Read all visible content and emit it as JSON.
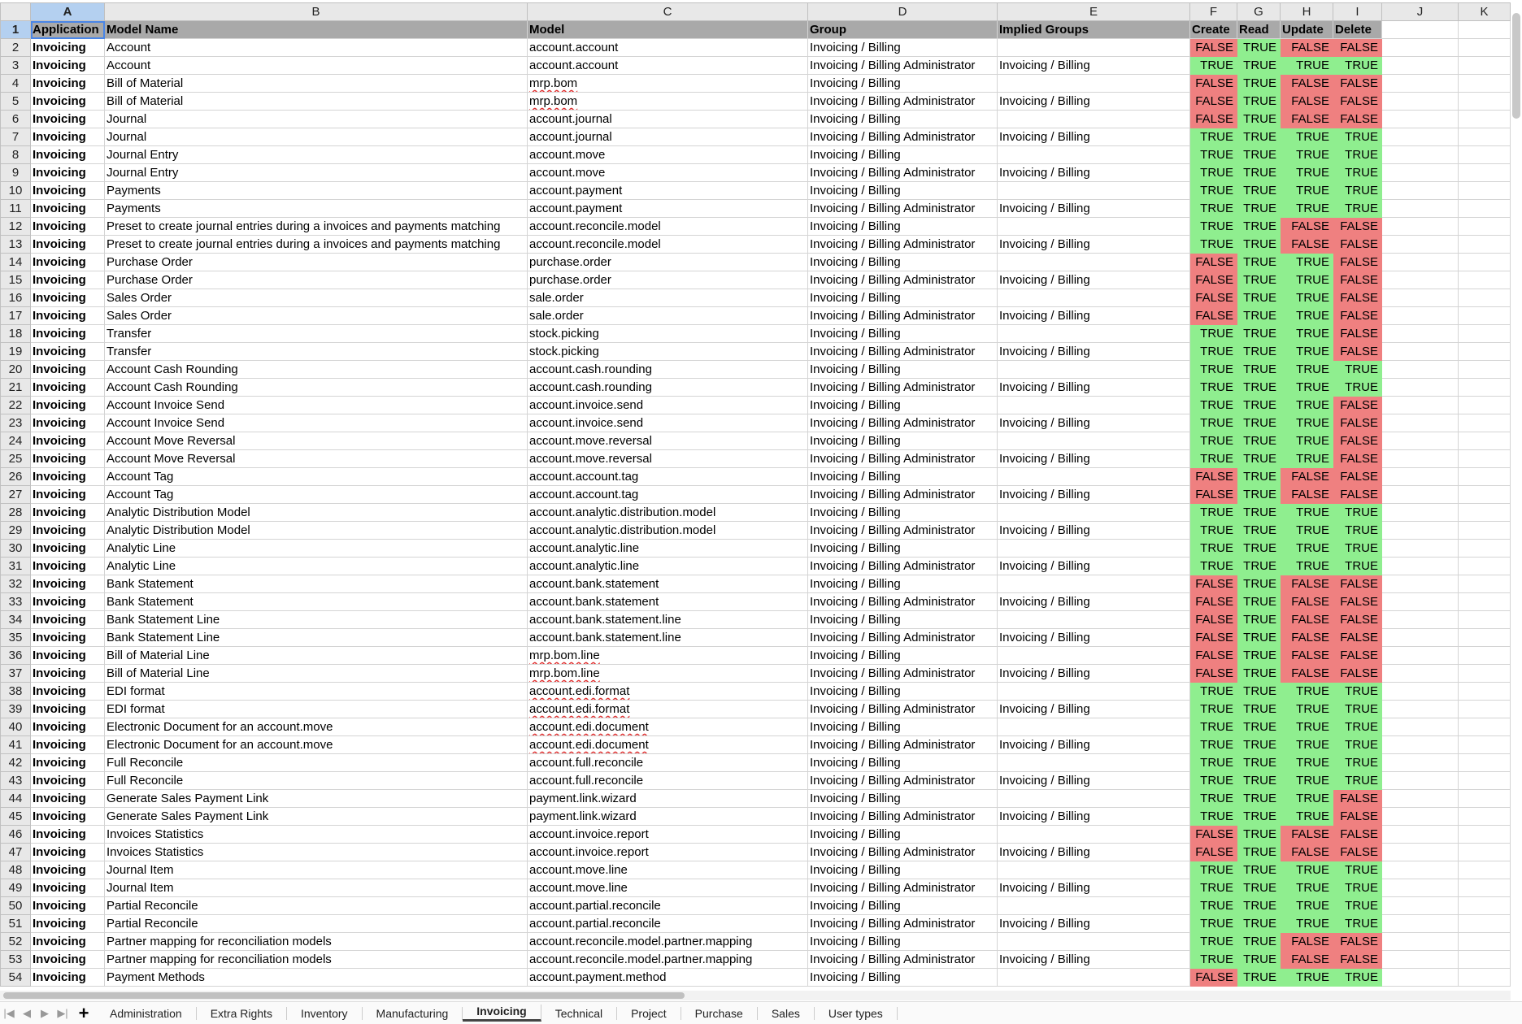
{
  "column_letters": [
    "A",
    "B",
    "C",
    "D",
    "E",
    "F",
    "G",
    "H",
    "I",
    "J",
    "K"
  ],
  "selected_cell": "A1",
  "header_row": [
    "Application",
    "Model Name",
    "Model",
    "Group",
    "Implied Groups",
    "Create",
    "Read",
    "Update",
    "Delete",
    "",
    ""
  ],
  "rows": [
    [
      "Invoicing",
      "Account",
      "account.account",
      "Invoicing / Billing",
      "",
      "FALSE",
      "TRUE",
      "FALSE",
      "FALSE"
    ],
    [
      "Invoicing",
      "Account",
      "account.account",
      "Invoicing / Billing Administrator",
      "Invoicing / Billing",
      "TRUE",
      "TRUE",
      "TRUE",
      "TRUE"
    ],
    [
      "Invoicing",
      "Bill of Material",
      "mrp.bom",
      "Invoicing / Billing",
      "",
      "FALSE",
      "TRUE",
      "FALSE",
      "FALSE"
    ],
    [
      "Invoicing",
      "Bill of Material",
      "mrp.bom",
      "Invoicing / Billing Administrator",
      "Invoicing / Billing",
      "FALSE",
      "TRUE",
      "FALSE",
      "FALSE"
    ],
    [
      "Invoicing",
      "Journal",
      "account.journal",
      "Invoicing / Billing",
      "",
      "FALSE",
      "TRUE",
      "FALSE",
      "FALSE"
    ],
    [
      "Invoicing",
      "Journal",
      "account.journal",
      "Invoicing / Billing Administrator",
      "Invoicing / Billing",
      "TRUE",
      "TRUE",
      "TRUE",
      "TRUE"
    ],
    [
      "Invoicing",
      "Journal Entry",
      "account.move",
      "Invoicing / Billing",
      "",
      "TRUE",
      "TRUE",
      "TRUE",
      "TRUE"
    ],
    [
      "Invoicing",
      "Journal Entry",
      "account.move",
      "Invoicing / Billing Administrator",
      "Invoicing / Billing",
      "TRUE",
      "TRUE",
      "TRUE",
      "TRUE"
    ],
    [
      "Invoicing",
      "Payments",
      "account.payment",
      "Invoicing / Billing",
      "",
      "TRUE",
      "TRUE",
      "TRUE",
      "TRUE"
    ],
    [
      "Invoicing",
      "Payments",
      "account.payment",
      "Invoicing / Billing Administrator",
      "Invoicing / Billing",
      "TRUE",
      "TRUE",
      "TRUE",
      "TRUE"
    ],
    [
      "Invoicing",
      "Preset to create journal entries during a invoices and payments matching",
      "account.reconcile.model",
      "Invoicing / Billing",
      "",
      "TRUE",
      "TRUE",
      "FALSE",
      "FALSE"
    ],
    [
      "Invoicing",
      "Preset to create journal entries during a invoices and payments matching",
      "account.reconcile.model",
      "Invoicing / Billing Administrator",
      "Invoicing / Billing",
      "TRUE",
      "TRUE",
      "FALSE",
      "FALSE"
    ],
    [
      "Invoicing",
      "Purchase Order",
      "purchase.order",
      "Invoicing / Billing",
      "",
      "FALSE",
      "TRUE",
      "TRUE",
      "FALSE"
    ],
    [
      "Invoicing",
      "Purchase Order",
      "purchase.order",
      "Invoicing / Billing Administrator",
      "Invoicing / Billing",
      "FALSE",
      "TRUE",
      "TRUE",
      "FALSE"
    ],
    [
      "Invoicing",
      "Sales Order",
      "sale.order",
      "Invoicing / Billing",
      "",
      "FALSE",
      "TRUE",
      "TRUE",
      "FALSE"
    ],
    [
      "Invoicing",
      "Sales Order",
      "sale.order",
      "Invoicing / Billing Administrator",
      "Invoicing / Billing",
      "FALSE",
      "TRUE",
      "TRUE",
      "FALSE"
    ],
    [
      "Invoicing",
      "Transfer",
      "stock.picking",
      "Invoicing / Billing",
      "",
      "TRUE",
      "TRUE",
      "TRUE",
      "FALSE"
    ],
    [
      "Invoicing",
      "Transfer",
      "stock.picking",
      "Invoicing / Billing Administrator",
      "Invoicing / Billing",
      "TRUE",
      "TRUE",
      "TRUE",
      "FALSE"
    ],
    [
      "Invoicing",
      "Account Cash Rounding",
      "account.cash.rounding",
      "Invoicing / Billing",
      "",
      "TRUE",
      "TRUE",
      "TRUE",
      "TRUE"
    ],
    [
      "Invoicing",
      "Account Cash Rounding",
      "account.cash.rounding",
      "Invoicing / Billing Administrator",
      "Invoicing / Billing",
      "TRUE",
      "TRUE",
      "TRUE",
      "TRUE"
    ],
    [
      "Invoicing",
      "Account Invoice Send",
      "account.invoice.send",
      "Invoicing / Billing",
      "",
      "TRUE",
      "TRUE",
      "TRUE",
      "FALSE"
    ],
    [
      "Invoicing",
      "Account Invoice Send",
      "account.invoice.send",
      "Invoicing / Billing Administrator",
      "Invoicing / Billing",
      "TRUE",
      "TRUE",
      "TRUE",
      "FALSE"
    ],
    [
      "Invoicing",
      "Account Move Reversal",
      "account.move.reversal",
      "Invoicing / Billing",
      "",
      "TRUE",
      "TRUE",
      "TRUE",
      "FALSE"
    ],
    [
      "Invoicing",
      "Account Move Reversal",
      "account.move.reversal",
      "Invoicing / Billing Administrator",
      "Invoicing / Billing",
      "TRUE",
      "TRUE",
      "TRUE",
      "FALSE"
    ],
    [
      "Invoicing",
      "Account Tag",
      "account.account.tag",
      "Invoicing / Billing",
      "",
      "FALSE",
      "TRUE",
      "FALSE",
      "FALSE"
    ],
    [
      "Invoicing",
      "Account Tag",
      "account.account.tag",
      "Invoicing / Billing Administrator",
      "Invoicing / Billing",
      "FALSE",
      "TRUE",
      "FALSE",
      "FALSE"
    ],
    [
      "Invoicing",
      "Analytic Distribution Model",
      "account.analytic.distribution.model",
      "Invoicing / Billing",
      "",
      "TRUE",
      "TRUE",
      "TRUE",
      "TRUE"
    ],
    [
      "Invoicing",
      "Analytic Distribution Model",
      "account.analytic.distribution.model",
      "Invoicing / Billing Administrator",
      "Invoicing / Billing",
      "TRUE",
      "TRUE",
      "TRUE",
      "TRUE"
    ],
    [
      "Invoicing",
      "Analytic Line",
      "account.analytic.line",
      "Invoicing / Billing",
      "",
      "TRUE",
      "TRUE",
      "TRUE",
      "TRUE"
    ],
    [
      "Invoicing",
      "Analytic Line",
      "account.analytic.line",
      "Invoicing / Billing Administrator",
      "Invoicing / Billing",
      "TRUE",
      "TRUE",
      "TRUE",
      "TRUE"
    ],
    [
      "Invoicing",
      "Bank Statement",
      "account.bank.statement",
      "Invoicing / Billing",
      "",
      "FALSE",
      "TRUE",
      "FALSE",
      "FALSE"
    ],
    [
      "Invoicing",
      "Bank Statement",
      "account.bank.statement",
      "Invoicing / Billing Administrator",
      "Invoicing / Billing",
      "FALSE",
      "TRUE",
      "FALSE",
      "FALSE"
    ],
    [
      "Invoicing",
      "Bank Statement Line",
      "account.bank.statement.line",
      "Invoicing / Billing",
      "",
      "FALSE",
      "TRUE",
      "FALSE",
      "FALSE"
    ],
    [
      "Invoicing",
      "Bank Statement Line",
      "account.bank.statement.line",
      "Invoicing / Billing Administrator",
      "Invoicing / Billing",
      "FALSE",
      "TRUE",
      "FALSE",
      "FALSE"
    ],
    [
      "Invoicing",
      "Bill of Material Line",
      "mrp.bom.line",
      "Invoicing / Billing",
      "",
      "FALSE",
      "TRUE",
      "FALSE",
      "FALSE"
    ],
    [
      "Invoicing",
      "Bill of Material Line",
      "mrp.bom.line",
      "Invoicing / Billing Administrator",
      "Invoicing / Billing",
      "FALSE",
      "TRUE",
      "FALSE",
      "FALSE"
    ],
    [
      "Invoicing",
      "EDI format",
      "account.edi.format",
      "Invoicing / Billing",
      "",
      "TRUE",
      "TRUE",
      "TRUE",
      "TRUE"
    ],
    [
      "Invoicing",
      "EDI format",
      "account.edi.format",
      "Invoicing / Billing Administrator",
      "Invoicing / Billing",
      "TRUE",
      "TRUE",
      "TRUE",
      "TRUE"
    ],
    [
      "Invoicing",
      "Electronic Document for an account.move",
      "account.edi.document",
      "Invoicing / Billing",
      "",
      "TRUE",
      "TRUE",
      "TRUE",
      "TRUE"
    ],
    [
      "Invoicing",
      "Electronic Document for an account.move",
      "account.edi.document",
      "Invoicing / Billing Administrator",
      "Invoicing / Billing",
      "TRUE",
      "TRUE",
      "TRUE",
      "TRUE"
    ],
    [
      "Invoicing",
      "Full Reconcile",
      "account.full.reconcile",
      "Invoicing / Billing",
      "",
      "TRUE",
      "TRUE",
      "TRUE",
      "TRUE"
    ],
    [
      "Invoicing",
      "Full Reconcile",
      "account.full.reconcile",
      "Invoicing / Billing Administrator",
      "Invoicing / Billing",
      "TRUE",
      "TRUE",
      "TRUE",
      "TRUE"
    ],
    [
      "Invoicing",
      "Generate Sales Payment Link",
      "payment.link.wizard",
      "Invoicing / Billing",
      "",
      "TRUE",
      "TRUE",
      "TRUE",
      "FALSE"
    ],
    [
      "Invoicing",
      "Generate Sales Payment Link",
      "payment.link.wizard",
      "Invoicing / Billing Administrator",
      "Invoicing / Billing",
      "TRUE",
      "TRUE",
      "TRUE",
      "FALSE"
    ],
    [
      "Invoicing",
      "Invoices Statistics",
      "account.invoice.report",
      "Invoicing / Billing",
      "",
      "FALSE",
      "TRUE",
      "FALSE",
      "FALSE"
    ],
    [
      "Invoicing",
      "Invoices Statistics",
      "account.invoice.report",
      "Invoicing / Billing Administrator",
      "Invoicing / Billing",
      "FALSE",
      "TRUE",
      "FALSE",
      "FALSE"
    ],
    [
      "Invoicing",
      "Journal Item",
      "account.move.line",
      "Invoicing / Billing",
      "",
      "TRUE",
      "TRUE",
      "TRUE",
      "TRUE"
    ],
    [
      "Invoicing",
      "Journal Item",
      "account.move.line",
      "Invoicing / Billing Administrator",
      "Invoicing / Billing",
      "TRUE",
      "TRUE",
      "TRUE",
      "TRUE"
    ],
    [
      "Invoicing",
      "Partial Reconcile",
      "account.partial.reconcile",
      "Invoicing / Billing",
      "",
      "TRUE",
      "TRUE",
      "TRUE",
      "TRUE"
    ],
    [
      "Invoicing",
      "Partial Reconcile",
      "account.partial.reconcile",
      "Invoicing / Billing Administrator",
      "Invoicing / Billing",
      "TRUE",
      "TRUE",
      "TRUE",
      "TRUE"
    ],
    [
      "Invoicing",
      "Partner mapping for reconciliation models",
      "account.reconcile.model.partner.mapping",
      "Invoicing / Billing",
      "",
      "TRUE",
      "TRUE",
      "FALSE",
      "FALSE"
    ],
    [
      "Invoicing",
      "Partner mapping for reconciliation models",
      "account.reconcile.model.partner.mapping",
      "Invoicing / Billing Administrator",
      "Invoicing / Billing",
      "TRUE",
      "TRUE",
      "FALSE",
      "FALSE"
    ],
    [
      "Invoicing",
      "Payment Methods",
      "account.payment.method",
      "Invoicing / Billing",
      "",
      "FALSE",
      "TRUE",
      "TRUE",
      "TRUE"
    ]
  ],
  "colors": {
    "true_fill": "#8fee8f",
    "false_fill": "#ef8080",
    "header_fill": "#a9a9a9",
    "selection": "#4a86e8"
  },
  "sheet_tabs": [
    "Administration",
    "Extra Rights",
    "Inventory",
    "Manufacturing",
    "Invoicing",
    "Technical",
    "Project",
    "Purchase",
    "Sales",
    "User types"
  ],
  "active_tab": "Invoicing",
  "icons": {
    "first": "first-sheet-icon",
    "prev": "prev-sheet-icon",
    "next": "next-sheet-icon",
    "last": "last-sheet-icon",
    "add": "add-sheet-icon"
  }
}
